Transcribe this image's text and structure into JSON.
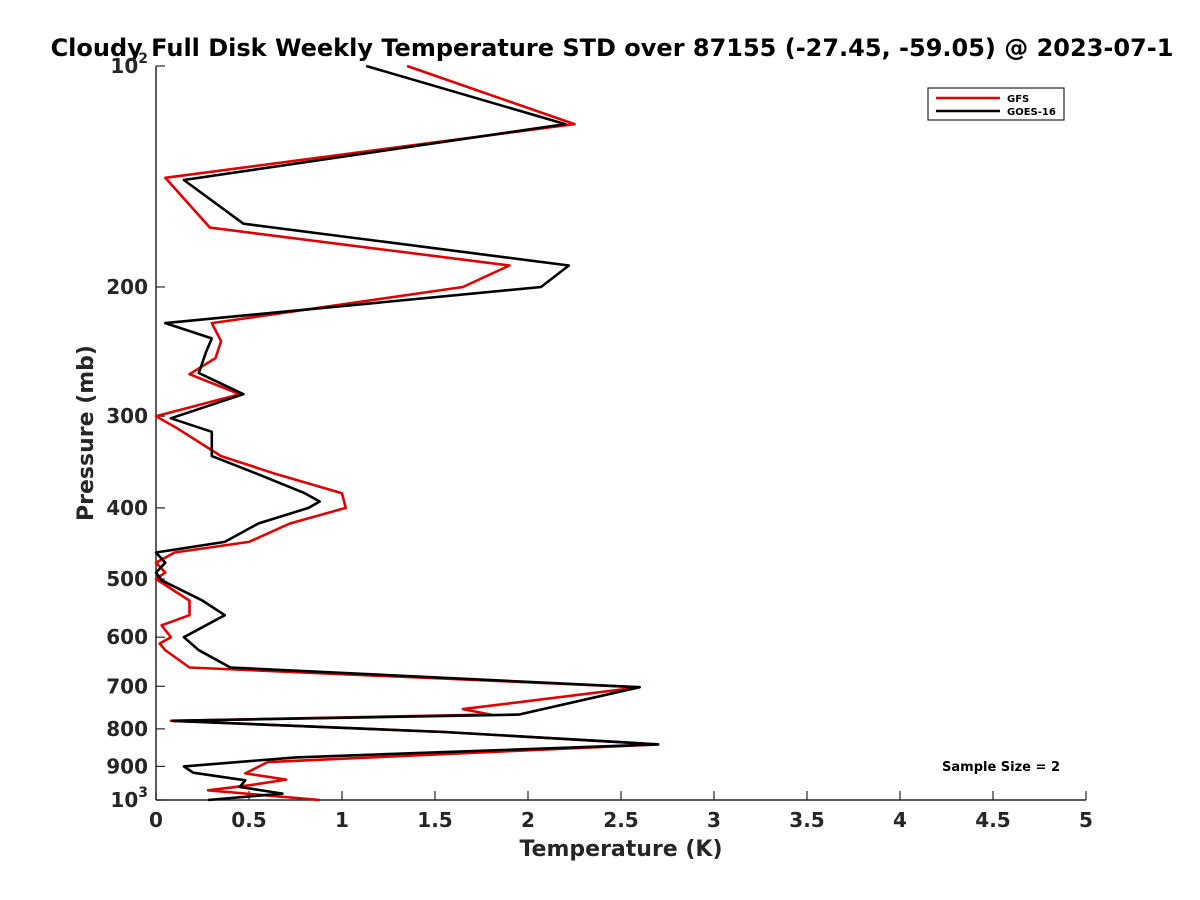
{
  "chart_data": {
    "type": "line",
    "title": "Cloudy Full Disk Weekly Temperature STD over 87155 (-27.45, -59.05) @ 2023-07-1",
    "xlabel": "Temperature (K)",
    "ylabel": "Pressure (mb)",
    "xlim": [
      0,
      5
    ],
    "ylim": [
      100,
      1000
    ],
    "yscale": "log",
    "yreversed": true,
    "xticks": [
      0,
      0.5,
      1,
      1.5,
      2,
      2.5,
      3,
      3.5,
      4,
      4.5,
      5
    ],
    "xtick_labels": [
      "0",
      "0.5",
      "1",
      "1.5",
      "2",
      "2.5",
      "3",
      "3.5",
      "4",
      "4.5",
      "5"
    ],
    "yticks": [
      100,
      200,
      300,
      400,
      500,
      600,
      700,
      800,
      900,
      1000
    ],
    "ytick_labels": [
      {
        "base": "10",
        "exp": "2"
      },
      {
        "base": "200"
      },
      {
        "base": "300"
      },
      {
        "base": "400"
      },
      {
        "base": "500"
      },
      {
        "base": "600"
      },
      {
        "base": "700"
      },
      {
        "base": "800"
      },
      {
        "base": "900"
      },
      {
        "base": "10",
        "exp": "3"
      }
    ],
    "legend_position": "top-right",
    "annotation": "Sample Size = 2",
    "series": [
      {
        "name": "GFS",
        "color": "#e00000",
        "x": [
          1.35,
          2.25,
          0.05,
          0.29,
          1.9,
          1.65,
          0.3,
          0.35,
          0.32,
          0.18,
          0.45,
          0.0,
          0.1,
          0.35,
          0.65,
          1.0,
          1.02,
          0.72,
          0.5,
          0.1,
          0.0,
          0.05,
          0.0,
          0.18,
          0.18,
          0.03,
          0.08,
          0.02,
          0.05,
          0.18,
          2.6,
          1.65,
          1.8,
          0.08,
          1.55,
          2.7,
          0.6,
          0.48,
          0.7,
          0.5,
          0.28,
          0.88
        ],
        "y": [
          100,
          120,
          142,
          166,
          187,
          200,
          224,
          237,
          250,
          263,
          280,
          300,
          310,
          340,
          360,
          382,
          400,
          420,
          445,
          460,
          475,
          490,
          500,
          535,
          560,
          578,
          600,
          612,
          625,
          660,
          702,
          752,
          765,
          780,
          808,
          840,
          888,
          920,
          938,
          955,
          970,
          1000
        ]
      },
      {
        "name": "GOES-16",
        "color": "#000000",
        "x": [
          1.13,
          2.2,
          0.15,
          0.47,
          2.22,
          2.07,
          0.05,
          0.3,
          0.27,
          0.23,
          0.47,
          0.08,
          0.3,
          0.3,
          0.55,
          0.8,
          0.88,
          0.82,
          0.55,
          0.37,
          0.0,
          0.05,
          0.0,
          0.03,
          0.25,
          0.37,
          0.15,
          0.23,
          0.4,
          2.6,
          1.95,
          0.09,
          1.55,
          2.7,
          0.75,
          0.15,
          0.2,
          0.48,
          0.45,
          0.68,
          0.28
        ],
        "y": [
          100,
          120,
          143,
          164,
          187,
          200,
          224,
          235,
          245,
          262,
          280,
          302,
          315,
          340,
          360,
          382,
          392,
          400,
          420,
          445,
          460,
          475,
          490,
          502,
          535,
          560,
          600,
          625,
          660,
          702,
          765,
          780,
          808,
          840,
          875,
          900,
          918,
          940,
          960,
          980,
          1000
        ]
      }
    ]
  }
}
